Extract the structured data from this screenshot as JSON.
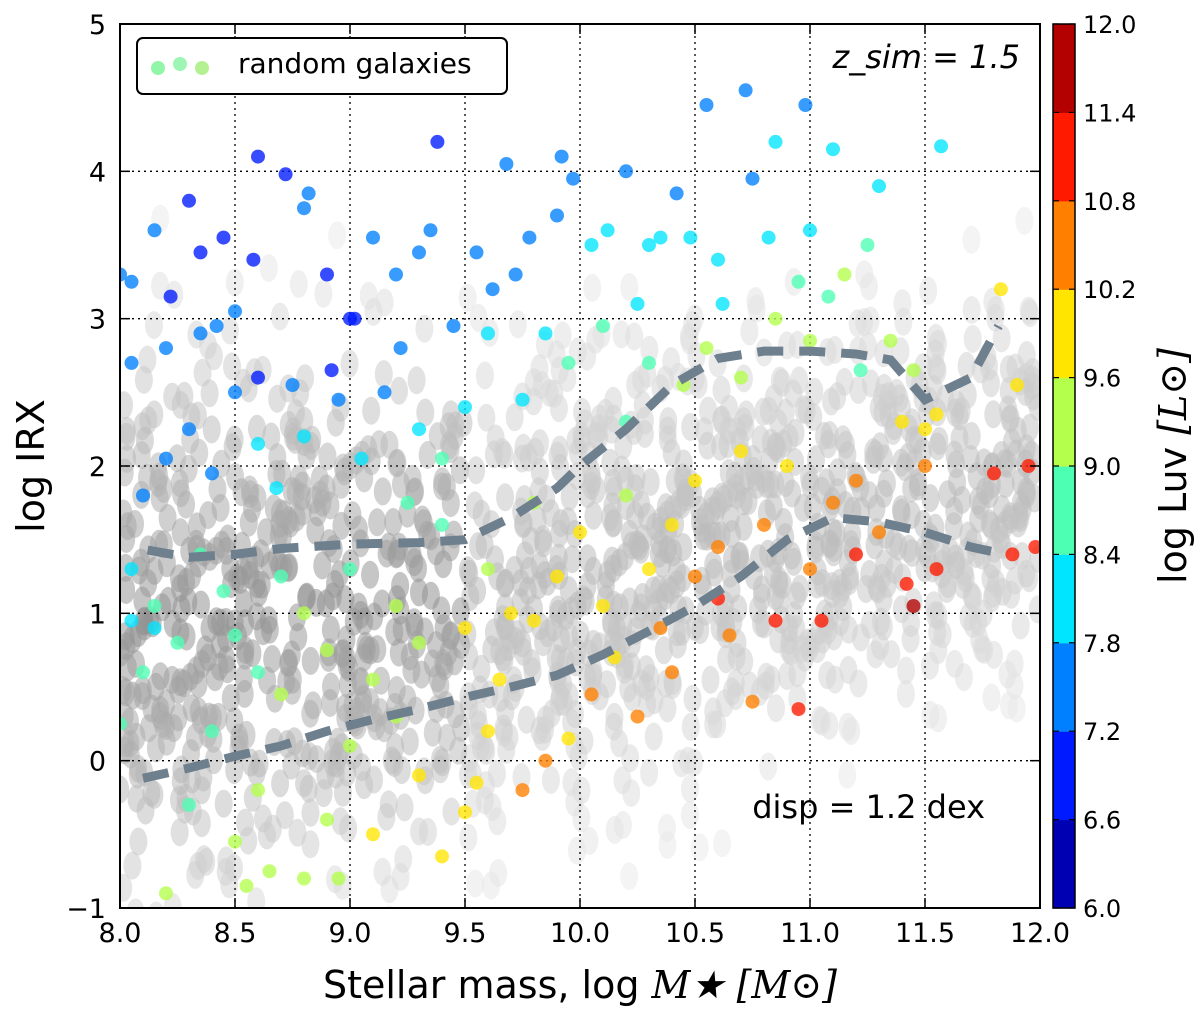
{
  "chart_data": {
    "type": "scatter",
    "xlabel_prefix": "Stellar mass, log ",
    "xlabel_math": "M★ [M⊙]",
    "ylabel": "log IRX",
    "xlim": [
      8.0,
      12.0
    ],
    "ylim": [
      -1,
      5
    ],
    "xticks": [
      "8.0",
      "8.5",
      "9.0",
      "9.5",
      "10.0",
      "10.5",
      "11.0",
      "11.5",
      "12.0"
    ],
    "yticks": [
      "−1",
      "0",
      "1",
      "2",
      "3",
      "4",
      "5"
    ],
    "grid": true,
    "legend": {
      "label": "random galaxies",
      "position": "top-left"
    },
    "annotation_top_right": "z_sim = 1.5",
    "annotation_bottom_right": "disp = 1.2 dex",
    "colorbar": {
      "label_prefix": "log Luv ",
      "label_math": "[L⊙]",
      "range": [
        6.0,
        12.0
      ],
      "ticks": [
        "6.0",
        "6.6",
        "7.2",
        "7.8",
        "8.4",
        "9.0",
        "9.6",
        "10.2",
        "10.8",
        "11.4",
        "12.0"
      ],
      "colormap": "jet",
      "n_bins": 10
    },
    "upper_dashed_curve": {
      "x": [
        8.12,
        8.3,
        8.5,
        8.7,
        9.0,
        9.3,
        9.5,
        9.7,
        9.9,
        10.0,
        10.2,
        10.4,
        10.6,
        10.8,
        11.0,
        11.2,
        11.35,
        11.5,
        11.7,
        11.82
      ],
      "y": [
        1.43,
        1.38,
        1.4,
        1.44,
        1.47,
        1.48,
        1.5,
        1.65,
        1.85,
        2.0,
        2.25,
        2.55,
        2.73,
        2.78,
        2.78,
        2.76,
        2.72,
        2.45,
        2.6,
        2.95
      ]
    },
    "lower_dashed_curve": {
      "x": [
        8.1,
        8.3,
        8.5,
        8.7,
        8.9,
        9.1,
        9.3,
        9.5,
        9.7,
        9.9,
        10.1,
        10.3,
        10.5,
        10.7,
        10.9,
        11.1,
        11.3,
        11.5,
        11.7,
        11.85
      ],
      "y": [
        -0.12,
        -0.05,
        0.03,
        0.1,
        0.2,
        0.28,
        0.35,
        0.43,
        0.5,
        0.58,
        0.72,
        0.88,
        1.05,
        1.25,
        1.5,
        1.65,
        1.62,
        1.55,
        1.45,
        1.4
      ]
    },
    "scatter_points": [
      [
        8.0,
        3.3,
        7.6
      ],
      [
        8.05,
        3.25,
        7.2
      ],
      [
        8.15,
        3.6,
        7.3
      ],
      [
        8.3,
        3.8,
        6.8
      ],
      [
        8.35,
        3.45,
        7.0
      ],
      [
        8.45,
        3.55,
        7.1
      ],
      [
        8.6,
        4.1,
        6.9
      ],
      [
        8.72,
        3.98,
        6.9
      ],
      [
        8.8,
        3.75,
        7.3
      ],
      [
        8.82,
        3.85,
        7.4
      ],
      [
        8.05,
        2.7,
        7.3
      ],
      [
        8.2,
        2.8,
        7.5
      ],
      [
        8.35,
        2.9,
        7.6
      ],
      [
        8.5,
        3.05,
        7.3
      ],
      [
        8.6,
        2.6,
        7.1
      ],
      [
        8.75,
        2.55,
        7.2
      ],
      [
        8.9,
        3.3,
        7.0
      ],
      [
        9.0,
        3.0,
        6.9
      ],
      [
        9.1,
        3.55,
        7.2
      ],
      [
        9.2,
        3.3,
        7.4
      ],
      [
        9.3,
        3.45,
        7.5
      ],
      [
        9.38,
        4.2,
        6.9
      ],
      [
        9.45,
        2.95,
        7.3
      ],
      [
        9.55,
        3.45,
        7.3
      ],
      [
        9.68,
        4.05,
        7.3
      ],
      [
        9.72,
        3.3,
        7.7
      ],
      [
        9.9,
        3.7,
        7.4
      ],
      [
        9.92,
        4.1,
        7.3
      ],
      [
        9.97,
        3.95,
        7.2
      ],
      [
        10.05,
        3.5,
        7.8
      ],
      [
        10.2,
        4.0,
        7.6
      ],
      [
        10.35,
        3.55,
        7.8
      ],
      [
        10.42,
        3.85,
        7.7
      ],
      [
        10.48,
        3.55,
        7.8
      ],
      [
        10.55,
        4.45,
        7.7
      ],
      [
        10.72,
        4.55,
        7.5
      ],
      [
        10.75,
        3.95,
        7.7
      ],
      [
        10.85,
        4.2,
        7.8
      ],
      [
        10.98,
        4.45,
        7.6
      ],
      [
        11.1,
        4.15,
        8.0
      ],
      [
        11.57,
        4.17,
        8.2
      ],
      [
        11.3,
        3.9,
        8.1
      ],
      [
        11.0,
        3.6,
        8.2
      ],
      [
        10.82,
        3.55,
        8.0
      ],
      [
        10.6,
        3.4,
        8.2
      ],
      [
        10.3,
        3.5,
        7.9
      ],
      [
        8.1,
        1.8,
        7.7
      ],
      [
        8.2,
        2.05,
        7.6
      ],
      [
        8.3,
        2.25,
        7.7
      ],
      [
        8.4,
        1.95,
        7.5
      ],
      [
        8.5,
        2.5,
        7.4
      ],
      [
        8.6,
        2.15,
        7.9
      ],
      [
        8.68,
        1.85,
        8.0
      ],
      [
        8.8,
        2.2,
        7.8
      ],
      [
        8.95,
        2.45,
        7.5
      ],
      [
        9.15,
        2.5,
        7.6
      ],
      [
        9.3,
        2.25,
        8.2
      ],
      [
        9.4,
        2.05,
        8.4
      ],
      [
        9.5,
        2.4,
        8.1
      ],
      [
        9.6,
        2.9,
        8.2
      ],
      [
        9.75,
        2.45,
        8.0
      ],
      [
        9.85,
        2.9,
        8.3
      ],
      [
        9.95,
        2.7,
        8.6
      ],
      [
        10.1,
        2.95,
        8.5
      ],
      [
        10.2,
        2.3,
        8.7
      ],
      [
        10.3,
        2.7,
        8.9
      ],
      [
        10.45,
        2.55,
        9.1
      ],
      [
        10.55,
        2.8,
        9.0
      ],
      [
        10.7,
        2.6,
        9.3
      ],
      [
        10.85,
        3.0,
        9.1
      ],
      [
        11.0,
        2.85,
        9.2
      ],
      [
        11.15,
        3.3,
        9.0
      ],
      [
        11.25,
        3.5,
        8.7
      ],
      [
        11.35,
        2.85,
        9.3
      ],
      [
        11.45,
        2.65,
        9.5
      ],
      [
        11.83,
        3.2,
        10.0
      ],
      [
        11.9,
        2.55,
        10.1
      ],
      [
        8.05,
        1.3,
        8.3
      ],
      [
        8.15,
        1.05,
        8.6
      ],
      [
        8.25,
        0.8,
        8.8
      ],
      [
        8.35,
        1.4,
        8.4
      ],
      [
        8.45,
        1.15,
        8.7
      ],
      [
        8.5,
        0.85,
        8.5
      ],
      [
        8.6,
        0.6,
        8.9
      ],
      [
        8.7,
        1.25,
        8.6
      ],
      [
        8.8,
        1.0,
        9.0
      ],
      [
        8.9,
        0.75,
        9.2
      ],
      [
        9.0,
        1.3,
        8.8
      ],
      [
        9.1,
        0.55,
        9.3
      ],
      [
        9.2,
        1.05,
        9.1
      ],
      [
        9.3,
        0.8,
        9.5
      ],
      [
        9.4,
        1.6,
        8.9
      ],
      [
        9.5,
        0.9,
        9.6
      ],
      [
        9.6,
        1.3,
        9.2
      ],
      [
        9.7,
        1.0,
        9.7
      ],
      [
        9.8,
        1.75,
        9.3
      ],
      [
        9.9,
        1.25,
        9.8
      ],
      [
        10.0,
        1.55,
        9.6
      ],
      [
        10.1,
        1.05,
        10.0
      ],
      [
        10.2,
        1.8,
        9.5
      ],
      [
        10.3,
        1.3,
        9.9
      ],
      [
        10.4,
        1.6,
        10.2
      ],
      [
        10.5,
        1.9,
        9.8
      ],
      [
        10.6,
        1.45,
        10.3
      ],
      [
        10.7,
        2.1,
        9.9
      ],
      [
        10.8,
        1.6,
        10.4
      ],
      [
        10.9,
        2.0,
        10.1
      ],
      [
        11.0,
        1.3,
        10.6
      ],
      [
        11.1,
        1.75,
        10.5
      ],
      [
        11.2,
        1.9,
        10.4
      ],
      [
        11.3,
        1.55,
        10.7
      ],
      [
        11.42,
        1.2,
        11.2
      ],
      [
        11.45,
        1.05,
        11.5
      ],
      [
        11.5,
        2.0,
        10.3
      ],
      [
        11.55,
        1.3,
        11.0
      ],
      [
        11.8,
        1.95,
        11.3
      ],
      [
        11.95,
        2.0,
        11.2
      ],
      [
        11.98,
        1.45,
        11.3
      ],
      [
        11.88,
        1.4,
        11.1
      ],
      [
        10.95,
        0.35,
        11.0
      ],
      [
        10.6,
        1.1,
        10.8
      ],
      [
        10.75,
        0.4,
        10.7
      ],
      [
        10.85,
        0.95,
        11.1
      ],
      [
        11.05,
        0.95,
        11.2
      ],
      [
        10.4,
        0.6,
        10.6
      ],
      [
        10.25,
        0.3,
        10.5
      ],
      [
        10.05,
        0.45,
        10.4
      ],
      [
        9.95,
        0.15,
        10.2
      ],
      [
        9.85,
        0.0,
        10.4
      ],
      [
        9.75,
        -0.2,
        10.3
      ],
      [
        9.6,
        0.2,
        9.9
      ],
      [
        9.5,
        -0.35,
        10.1
      ],
      [
        9.4,
        -0.65,
        10.0
      ],
      [
        9.3,
        -0.1,
        9.8
      ],
      [
        9.2,
        0.3,
        9.4
      ],
      [
        9.1,
        -0.5,
        9.7
      ],
      [
        9.0,
        0.1,
        9.4
      ],
      [
        8.9,
        -0.4,
        9.3
      ],
      [
        8.8,
        -0.8,
        9.1
      ],
      [
        8.7,
        0.45,
        9.0
      ],
      [
        8.6,
        -0.2,
        9.0
      ],
      [
        8.5,
        -0.55,
        9.2
      ],
      [
        8.4,
        0.2,
        8.9
      ],
      [
        8.3,
        -0.3,
        8.9
      ],
      [
        8.2,
        -0.9,
        9.0
      ],
      [
        8.1,
        0.6,
        8.6
      ],
      [
        8.0,
        0.25,
        8.8
      ],
      [
        8.15,
        0.9,
        8.2
      ],
      [
        8.05,
        0.95,
        8.0
      ],
      [
        8.55,
        -0.85,
        9.3
      ],
      [
        8.65,
        -0.75,
        9.2
      ],
      [
        8.95,
        -0.8,
        9.3
      ],
      [
        9.55,
        -0.15,
        9.6
      ],
      [
        9.65,
        0.55,
        9.8
      ],
      [
        9.8,
        0.95,
        9.9
      ],
      [
        10.15,
        0.7,
        10.1
      ],
      [
        10.35,
        0.9,
        10.3
      ],
      [
        10.5,
        1.25,
        10.5
      ],
      [
        10.65,
        0.85,
        10.6
      ],
      [
        11.2,
        1.4,
        11.0
      ],
      [
        8.22,
        3.15,
        7.0
      ],
      [
        8.42,
        2.95,
        7.3
      ],
      [
        8.58,
        3.4,
        7.0
      ],
      [
        8.92,
        2.65,
        7.1
      ],
      [
        9.02,
        3.0,
        6.9
      ],
      [
        9.22,
        2.8,
        7.2
      ],
      [
        9.35,
        3.6,
        7.2
      ],
      [
        9.62,
        3.2,
        7.6
      ],
      [
        9.78,
        3.55,
        7.5
      ],
      [
        10.12,
        3.6,
        7.8
      ],
      [
        10.25,
        3.1,
        8.0
      ],
      [
        10.62,
        3.1,
        8.1
      ],
      [
        10.95,
        3.25,
        8.4
      ],
      [
        11.08,
        3.15,
        8.5
      ],
      [
        11.22,
        2.65,
        8.8
      ],
      [
        11.4,
        2.3,
        9.6
      ],
      [
        11.55,
        2.35,
        9.9
      ],
      [
        11.5,
        2.25,
        10.1
      ],
      [
        9.05,
        2.05,
        8.3
      ],
      [
        9.25,
        1.75,
        8.4
      ]
    ]
  }
}
